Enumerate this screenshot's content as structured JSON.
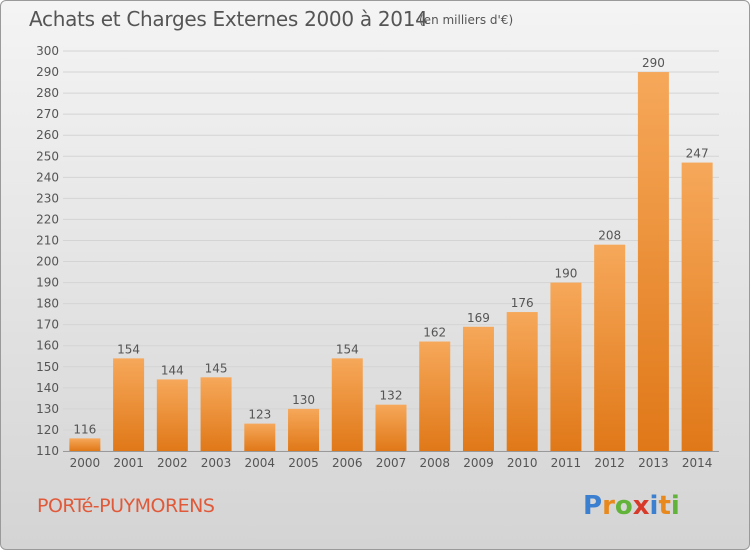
{
  "header": {
    "title": "Achats et Charges Externes 2000 à 2014",
    "subtitle": "(en milliers d'€)"
  },
  "footer": {
    "commune": "PORTé-PUYMORENS",
    "logo_text": "Proxiti",
    "logo_colors": [
      "#3a7fd0",
      "#e8891e",
      "#62b33a",
      "#d83a2a",
      "#3a7fd0",
      "#e8891e",
      "#62b33a"
    ]
  },
  "colors": {
    "bar_top": "#f6a85a",
    "bar_bottom": "#e07818",
    "grid": "#d4d4d4",
    "text": "#555555"
  },
  "chart_data": {
    "type": "bar",
    "categories": [
      "2000",
      "2001",
      "2002",
      "2003",
      "2004",
      "2005",
      "2006",
      "2007",
      "2008",
      "2009",
      "2010",
      "2011",
      "2012",
      "2013",
      "2014"
    ],
    "values": [
      116,
      154,
      144,
      145,
      123,
      130,
      154,
      132,
      162,
      169,
      176,
      190,
      208,
      290,
      247
    ],
    "ylim": [
      110,
      300
    ],
    "yticks": [
      110,
      120,
      130,
      140,
      150,
      160,
      170,
      180,
      190,
      200,
      210,
      220,
      230,
      240,
      250,
      260,
      270,
      280,
      290,
      300
    ],
    "grid": true,
    "legend": "none"
  }
}
